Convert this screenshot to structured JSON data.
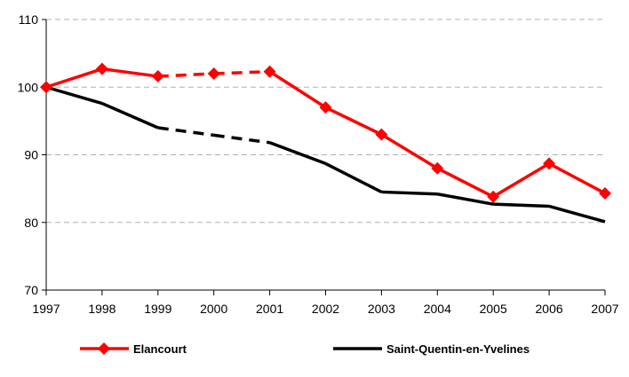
{
  "chart_data": {
    "type": "line",
    "x": [
      1997,
      1998,
      1999,
      2000,
      2001,
      2002,
      2003,
      2004,
      2005,
      2006,
      2007
    ],
    "x_tick_labels": [
      "1997",
      "1998",
      "1999",
      "2000",
      "2001",
      "2002",
      "2003",
      "2004",
      "2005",
      "2006",
      "2007"
    ],
    "ylim": [
      70,
      110
    ],
    "y_ticks": [
      70,
      80,
      90,
      100,
      110
    ],
    "y_tick_labels": [
      "70",
      "80",
      "90",
      "100",
      "110"
    ],
    "grid": "horizontal dashed",
    "legend_position": "bottom",
    "series": [
      {
        "name": "Elancourt",
        "color": "#ff0000",
        "marker": "diamond",
        "values": [
          100,
          102.7,
          101.6,
          102.0,
          102.3,
          97.0,
          93.0,
          88.0,
          83.8,
          88.7,
          84.3
        ],
        "dashed_between": [
          [
            1999,
            2001
          ]
        ]
      },
      {
        "name": "Saint-Quentin-en-Yvelines",
        "color": "#000000",
        "marker": "none",
        "values": [
          100,
          97.6,
          94.0,
          92.9,
          91.8,
          88.7,
          84.5,
          84.2,
          82.7,
          82.4,
          80.1
        ],
        "dashed_between": [
          [
            1999,
            2001
          ]
        ]
      }
    ],
    "title": "",
    "xlabel": "",
    "ylabel": ""
  }
}
